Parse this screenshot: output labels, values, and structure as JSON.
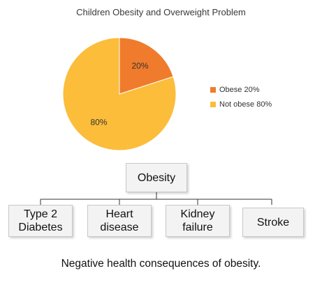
{
  "chart_data": {
    "type": "pie",
    "title": "Children Obesity and Overweight Problem",
    "series": [
      {
        "name": "Obese 20%",
        "value": 20,
        "label": "20%",
        "color": "#f07b2c"
      },
      {
        "name": "Not obese 80%",
        "value": 80,
        "label": "80%",
        "color": "#fbbd3a"
      }
    ],
    "legend_position": "right"
  },
  "diagram": {
    "root": "Obesity",
    "children": [
      "Type 2\nDiabetes",
      "Heart\ndisease",
      "Kidney\nfailure",
      "Stroke"
    ]
  },
  "caption": "Negative health consequences of obesity."
}
